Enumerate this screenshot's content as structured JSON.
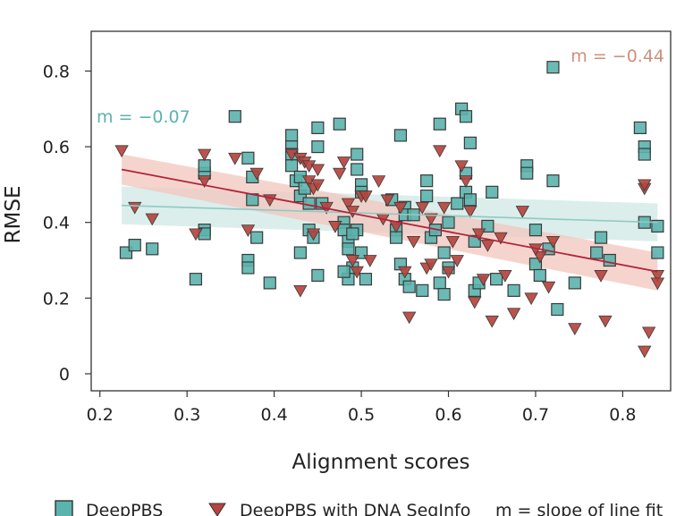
{
  "chart_data": {
    "type": "scatter",
    "xlabel": "Alignment scores",
    "ylabel": "RMSE",
    "xlim": [
      0.19,
      0.855
    ],
    "ylim": [
      -0.045,
      0.905
    ],
    "xticks": [
      "0.2",
      "0.3",
      "0.4",
      "0.5",
      "0.6",
      "0.7",
      "0.8"
    ],
    "yticks": [
      "0",
      "0.2",
      "0.4",
      "0.6",
      "0.8"
    ],
    "grid": false,
    "legend_position": "bottom",
    "legend_note": "m = slope of line fit",
    "annotations": [
      {
        "text": "m = −0.07",
        "series": "DeepPBS"
      },
      {
        "text": "m = −0.44",
        "series": "DeepPBS with DNA SeqInfo"
      }
    ],
    "series": [
      {
        "name": "DeepPBS",
        "marker": "square",
        "color": "#5bb3ad",
        "fit": {
          "x": [
            0.225,
            0.84
          ],
          "y": [
            0.445,
            0.4
          ],
          "ci_half": [
            0.05,
            0.05
          ]
        },
        "points": [
          [
            0.23,
            0.32
          ],
          [
            0.24,
            0.34
          ],
          [
            0.26,
            0.33
          ],
          [
            0.31,
            0.25
          ],
          [
            0.32,
            0.53
          ],
          [
            0.32,
            0.55
          ],
          [
            0.32,
            0.38
          ],
          [
            0.32,
            0.37
          ],
          [
            0.355,
            0.68
          ],
          [
            0.37,
            0.57
          ],
          [
            0.37,
            0.3
          ],
          [
            0.37,
            0.28
          ],
          [
            0.375,
            0.52
          ],
          [
            0.38,
            0.36
          ],
          [
            0.395,
            0.24
          ],
          [
            0.375,
            0.46
          ],
          [
            0.42,
            0.63
          ],
          [
            0.42,
            0.6
          ],
          [
            0.42,
            0.58
          ],
          [
            0.42,
            0.55
          ],
          [
            0.425,
            0.51
          ],
          [
            0.43,
            0.47
          ],
          [
            0.43,
            0.52
          ],
          [
            0.435,
            0.49
          ],
          [
            0.44,
            0.45
          ],
          [
            0.44,
            0.38
          ],
          [
            0.445,
            0.36
          ],
          [
            0.45,
            0.65
          ],
          [
            0.45,
            0.6
          ],
          [
            0.455,
            0.45
          ],
          [
            0.45,
            0.26
          ],
          [
            0.43,
            0.32
          ],
          [
            0.475,
            0.66
          ],
          [
            0.48,
            0.4
          ],
          [
            0.48,
            0.38
          ],
          [
            0.485,
            0.35
          ],
          [
            0.485,
            0.33
          ],
          [
            0.49,
            0.28
          ],
          [
            0.485,
            0.25
          ],
          [
            0.48,
            0.27
          ],
          [
            0.495,
            0.58
          ],
          [
            0.495,
            0.54
          ],
          [
            0.5,
            0.5
          ],
          [
            0.5,
            0.48
          ],
          [
            0.495,
            0.38
          ],
          [
            0.5,
            0.32
          ],
          [
            0.505,
            0.25
          ],
          [
            0.49,
            0.37
          ],
          [
            0.535,
            0.46
          ],
          [
            0.54,
            0.38
          ],
          [
            0.54,
            0.36
          ],
          [
            0.545,
            0.29
          ],
          [
            0.545,
            0.63
          ],
          [
            0.55,
            0.44
          ],
          [
            0.55,
            0.42
          ],
          [
            0.55,
            0.25
          ],
          [
            0.555,
            0.23
          ],
          [
            0.56,
            0.42
          ],
          [
            0.57,
            0.22
          ],
          [
            0.575,
            0.51
          ],
          [
            0.575,
            0.47
          ],
          [
            0.58,
            0.36
          ],
          [
            0.585,
            0.38
          ],
          [
            0.59,
            0.66
          ],
          [
            0.59,
            0.24
          ],
          [
            0.595,
            0.21
          ],
          [
            0.595,
            0.32
          ],
          [
            0.6,
            0.28
          ],
          [
            0.6,
            0.4
          ],
          [
            0.61,
            0.45
          ],
          [
            0.615,
            0.7
          ],
          [
            0.62,
            0.68
          ],
          [
            0.62,
            0.53
          ],
          [
            0.62,
            0.48
          ],
          [
            0.625,
            0.46
          ],
          [
            0.625,
            0.61
          ],
          [
            0.63,
            0.35
          ],
          [
            0.63,
            0.22
          ],
          [
            0.635,
            0.24
          ],
          [
            0.645,
            0.39
          ],
          [
            0.655,
            0.25
          ],
          [
            0.65,
            0.48
          ],
          [
            0.675,
            0.22
          ],
          [
            0.69,
            0.55
          ],
          [
            0.69,
            0.53
          ],
          [
            0.7,
            0.38
          ],
          [
            0.7,
            0.29
          ],
          [
            0.705,
            0.26
          ],
          [
            0.715,
            0.33
          ],
          [
            0.72,
            0.51
          ],
          [
            0.72,
            0.81
          ],
          [
            0.725,
            0.17
          ],
          [
            0.745,
            0.24
          ],
          [
            0.77,
            0.32
          ],
          [
            0.775,
            0.36
          ],
          [
            0.785,
            0.3
          ],
          [
            0.82,
            0.65
          ],
          [
            0.825,
            0.6
          ],
          [
            0.825,
            0.58
          ],
          [
            0.825,
            0.4
          ],
          [
            0.84,
            0.39
          ],
          [
            0.84,
            0.32
          ]
        ]
      },
      {
        "name": "DeepPBS with DNA SeqInfo",
        "marker": "triangle-down",
        "color": "#b5443d",
        "fit": {
          "x": [
            0.225,
            0.84
          ],
          "y": [
            0.54,
            0.27
          ],
          "ci_half": [
            0.04,
            0.05
          ]
        },
        "points": [
          [
            0.225,
            0.59
          ],
          [
            0.24,
            0.44
          ],
          [
            0.26,
            0.41
          ],
          [
            0.31,
            0.37
          ],
          [
            0.32,
            0.51
          ],
          [
            0.32,
            0.58
          ],
          [
            0.355,
            0.57
          ],
          [
            0.37,
            0.38
          ],
          [
            0.38,
            0.53
          ],
          [
            0.395,
            0.46
          ],
          [
            0.42,
            0.58
          ],
          [
            0.43,
            0.57
          ],
          [
            0.435,
            0.56
          ],
          [
            0.44,
            0.55
          ],
          [
            0.44,
            0.51
          ],
          [
            0.445,
            0.49
          ],
          [
            0.45,
            0.54
          ],
          [
            0.45,
            0.5
          ],
          [
            0.46,
            0.44
          ],
          [
            0.43,
            0.22
          ],
          [
            0.445,
            0.37
          ],
          [
            0.47,
            0.39
          ],
          [
            0.475,
            0.53
          ],
          [
            0.48,
            0.56
          ],
          [
            0.485,
            0.45
          ],
          [
            0.49,
            0.43
          ],
          [
            0.49,
            0.3
          ],
          [
            0.495,
            0.27
          ],
          [
            0.5,
            0.47
          ],
          [
            0.505,
            0.47
          ],
          [
            0.51,
            0.3
          ],
          [
            0.52,
            0.51
          ],
          [
            0.525,
            0.41
          ],
          [
            0.53,
            0.46
          ],
          [
            0.54,
            0.39
          ],
          [
            0.545,
            0.44
          ],
          [
            0.55,
            0.27
          ],
          [
            0.555,
            0.15
          ],
          [
            0.56,
            0.35
          ],
          [
            0.57,
            0.44
          ],
          [
            0.575,
            0.28
          ],
          [
            0.58,
            0.29
          ],
          [
            0.58,
            0.41
          ],
          [
            0.59,
            0.59
          ],
          [
            0.595,
            0.44
          ],
          [
            0.6,
            0.27
          ],
          [
            0.605,
            0.35
          ],
          [
            0.61,
            0.3
          ],
          [
            0.615,
            0.55
          ],
          [
            0.62,
            0.51
          ],
          [
            0.625,
            0.43
          ],
          [
            0.63,
            0.19
          ],
          [
            0.635,
            0.37
          ],
          [
            0.64,
            0.25
          ],
          [
            0.645,
            0.34
          ],
          [
            0.65,
            0.14
          ],
          [
            0.66,
            0.36
          ],
          [
            0.665,
            0.26
          ],
          [
            0.675,
            0.16
          ],
          [
            0.685,
            0.43
          ],
          [
            0.695,
            0.2
          ],
          [
            0.705,
            0.31
          ],
          [
            0.715,
            0.23
          ],
          [
            0.72,
            0.35
          ],
          [
            0.745,
            0.12
          ],
          [
            0.775,
            0.26
          ],
          [
            0.78,
            0.14
          ],
          [
            0.825,
            0.49
          ],
          [
            0.825,
            0.5
          ],
          [
            0.83,
            0.11
          ],
          [
            0.825,
            0.06
          ],
          [
            0.84,
            0.26
          ],
          [
            0.84,
            0.24
          ],
          [
            0.7,
            0.33
          ]
        ]
      }
    ]
  }
}
